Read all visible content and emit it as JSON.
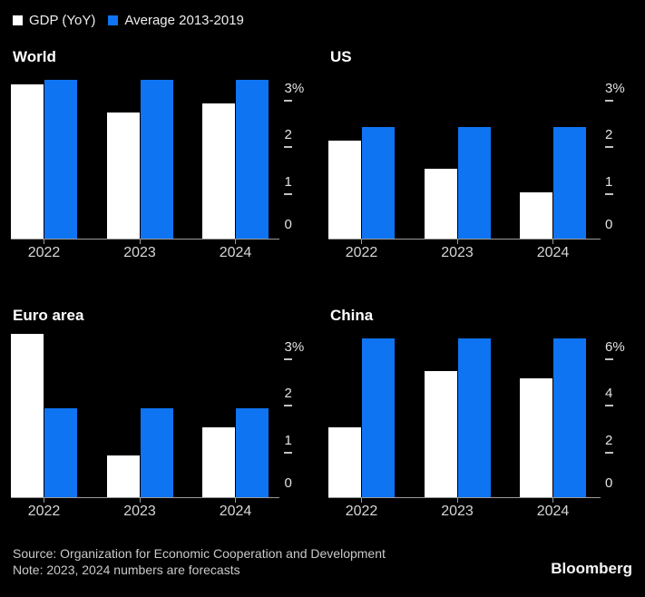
{
  "legend": {
    "items": [
      {
        "label": "GDP (YoY)",
        "color": "#ffffff"
      },
      {
        "label": "Average 2013-2019",
        "color": "#0e74f1"
      }
    ]
  },
  "colors": {
    "background": "#000000",
    "bar_gdp": "#ffffff",
    "bar_average": "#0e74f1",
    "axis_line": "#9a9a9a",
    "tick_label": "#e3e3e3",
    "x_label": "#d6d6d6",
    "footer_text": "#c9c9c9"
  },
  "chart_data": [
    {
      "type": "bar",
      "title": "World",
      "categories": [
        "2022",
        "2023",
        "2024"
      ],
      "series": [
        {
          "name": "GDP (YoY)",
          "color": "#ffffff",
          "values": [
            3.3,
            2.7,
            2.9
          ]
        },
        {
          "name": "Average 2013-2019",
          "color": "#0e74f1",
          "values": [
            3.4,
            3.4,
            3.4
          ]
        }
      ],
      "ylim": [
        0,
        3.5
      ],
      "yticks": [
        {
          "value": 0,
          "label": "0"
        },
        {
          "value": 1,
          "label": "1"
        },
        {
          "value": 2,
          "label": "2"
        },
        {
          "value": 3,
          "label": "3%"
        }
      ],
      "grid": false,
      "legend_position": "top-shared"
    },
    {
      "type": "bar",
      "title": "US",
      "categories": [
        "2022",
        "2023",
        "2024"
      ],
      "series": [
        {
          "name": "GDP (YoY)",
          "color": "#ffffff",
          "values": [
            2.1,
            1.5,
            1.0
          ]
        },
        {
          "name": "Average 2013-2019",
          "color": "#0e74f1",
          "values": [
            2.4,
            2.4,
            2.4
          ]
        }
      ],
      "ylim": [
        0,
        3.5
      ],
      "yticks": [
        {
          "value": 0,
          "label": "0"
        },
        {
          "value": 1,
          "label": "1"
        },
        {
          "value": 2,
          "label": "2"
        },
        {
          "value": 3,
          "label": "3%"
        }
      ],
      "grid": false,
      "legend_position": "top-shared"
    },
    {
      "type": "bar",
      "title": "Euro area",
      "categories": [
        "2022",
        "2023",
        "2024"
      ],
      "series": [
        {
          "name": "GDP (YoY)",
          "color": "#ffffff",
          "values": [
            3.5,
            0.9,
            1.5
          ]
        },
        {
          "name": "Average 2013-2019",
          "color": "#0e74f1",
          "values": [
            1.9,
            1.9,
            1.9
          ]
        }
      ],
      "ylim": [
        0,
        3.5
      ],
      "yticks": [
        {
          "value": 0,
          "label": "0"
        },
        {
          "value": 1,
          "label": "1"
        },
        {
          "value": 2,
          "label": "2"
        },
        {
          "value": 3,
          "label": "3%"
        }
      ],
      "grid": false,
      "legend_position": "top-shared"
    },
    {
      "type": "bar",
      "title": "China",
      "categories": [
        "2022",
        "2023",
        "2024"
      ],
      "series": [
        {
          "name": "GDP (YoY)",
          "color": "#ffffff",
          "values": [
            3.0,
            5.4,
            5.1
          ]
        },
        {
          "name": "Average 2013-2019",
          "color": "#0e74f1",
          "values": [
            6.8,
            6.8,
            6.8
          ]
        }
      ],
      "ylim": [
        0,
        7
      ],
      "yticks": [
        {
          "value": 0,
          "label": "0"
        },
        {
          "value": 2,
          "label": "2"
        },
        {
          "value": 4,
          "label": "4"
        },
        {
          "value": 6,
          "label": "6%"
        }
      ],
      "grid": false,
      "legend_position": "top-shared"
    }
  ],
  "footer": {
    "source": "Source: Organization for Economic Cooperation and Development",
    "note": "Note: 2023, 2024 numbers are forecasts",
    "brand": "Bloomberg"
  }
}
